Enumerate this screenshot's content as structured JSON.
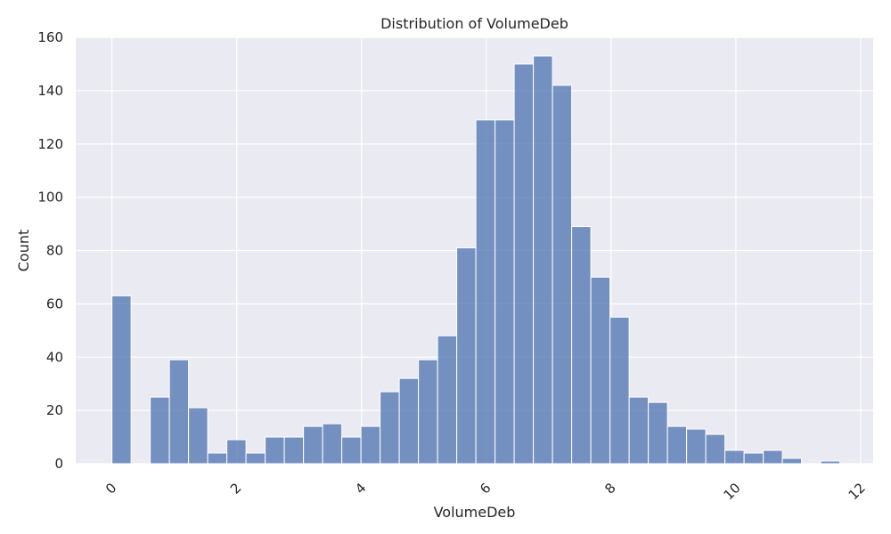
{
  "chart_data": {
    "type": "bar",
    "title": "Distribution of VolumeDeb",
    "xlabel": "VolumeDeb",
    "ylabel": "Count",
    "xlim": [
      -0.58,
      12.2
    ],
    "ylim": [
      0,
      160
    ],
    "x_ticks": [
      0,
      2,
      4,
      6,
      8,
      10,
      12
    ],
    "y_ticks": [
      0,
      20,
      40,
      60,
      80,
      100,
      120,
      140,
      160
    ],
    "grid": true,
    "bar_color": "#4c72b0",
    "background_color": "#eaeaf2",
    "bin_edges": [
      0.0,
      0.307,
      0.614,
      0.921,
      1.228,
      1.535,
      1.842,
      2.149,
      2.456,
      2.763,
      3.07,
      3.377,
      3.684,
      3.991,
      4.298,
      4.605,
      4.912,
      5.219,
      5.526,
      5.833,
      6.14,
      6.447,
      6.754,
      7.061,
      7.368,
      7.675,
      7.982,
      8.289,
      8.596,
      8.903,
      9.21,
      9.517,
      9.824,
      10.131,
      10.438,
      10.745,
      11.052,
      11.359,
      11.666
    ],
    "values": [
      63,
      0,
      25,
      39,
      21,
      4,
      9,
      4,
      10,
      10,
      14,
      15,
      10,
      14,
      27,
      32,
      39,
      48,
      81,
      129,
      129,
      150,
      153,
      142,
      89,
      70,
      55,
      25,
      23,
      14,
      13,
      11,
      5,
      4,
      5,
      2,
      0,
      1
    ]
  }
}
